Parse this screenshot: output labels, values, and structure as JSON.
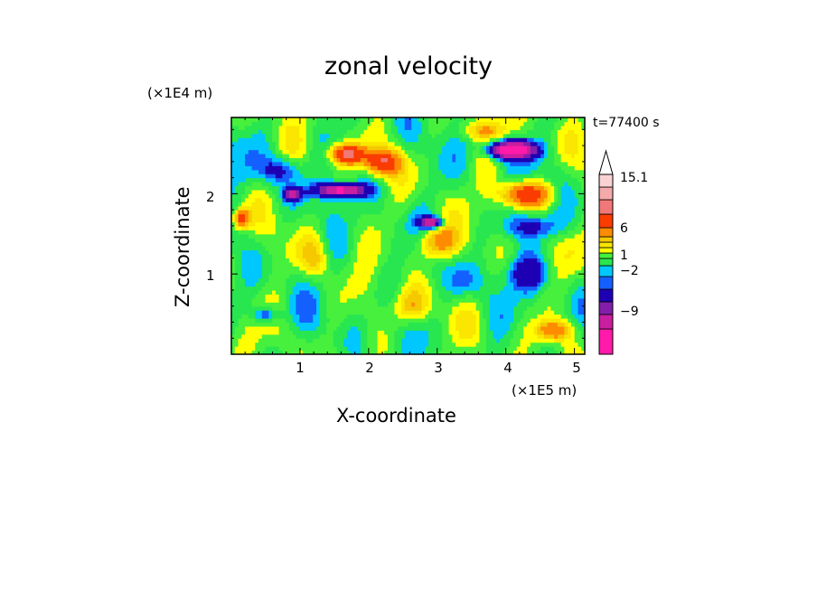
{
  "chart_data": {
    "type": "heatmap",
    "title": "zonal velocity",
    "xlabel": "X-coordinate",
    "ylabel": "Z-coordinate",
    "x_unit_label": "(×1E5 m)",
    "y_unit_label": "(×1E4 m)",
    "annotation": "t=77400 s",
    "xlim": [
      0,
      5.15
    ],
    "ylim": [
      0,
      2.95
    ],
    "x_ticks": [
      "1",
      "2",
      "3",
      "4",
      "5"
    ],
    "y_ticks": [
      "1",
      "2"
    ],
    "x_tick_values": [
      1,
      2,
      3,
      4,
      5
    ],
    "y_tick_values": [
      1,
      2
    ],
    "colorbar": {
      "labels": [
        "15.1",
        "6",
        "1",
        "−2",
        "−9"
      ],
      "label_values": [
        15.1,
        6,
        1,
        -2,
        -9
      ],
      "levels": [
        -15,
        -12,
        -9,
        -6,
        -3,
        -2,
        -1,
        0,
        1,
        2,
        3,
        4,
        6,
        9,
        12,
        15.1
      ],
      "colors": [
        "#ff1aaa",
        "#c81ea0",
        "#821eaa",
        "#1e00b4",
        "#1460ff",
        "#00c8ff",
        "#28e650",
        "#46f03c",
        "#ffff00",
        "#fae600",
        "#f5c800",
        "#ff8c00",
        "#fa3c00",
        "#f07878",
        "#f5aaaa",
        "#fad2d2"
      ]
    }
  }
}
